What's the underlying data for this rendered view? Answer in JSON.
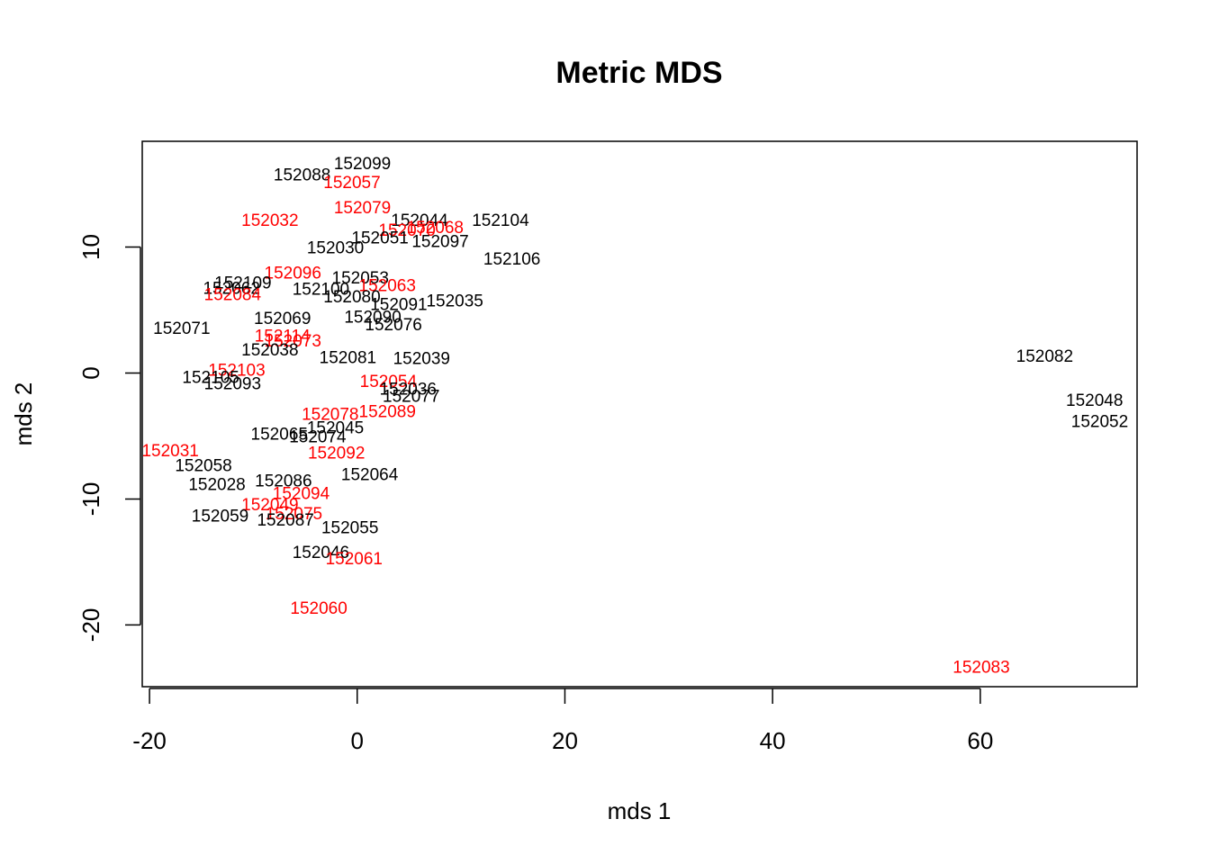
{
  "chart_data": {
    "type": "scatter",
    "title": "Metric MDS",
    "xlabel": "mds 1",
    "ylabel": "mds 2",
    "xlim": [
      -20.7,
      75.1
    ],
    "ylim": [
      -24.9,
      18.4
    ],
    "grid": false,
    "legend": "none",
    "colors": {
      "black": "#000000",
      "red": "#ff0000"
    },
    "xticks": [
      {
        "value": -20,
        "label": "-20"
      },
      {
        "value": 0,
        "label": "0"
      },
      {
        "value": 20,
        "label": "20"
      },
      {
        "value": 40,
        "label": "40"
      },
      {
        "value": 60,
        "label": "60"
      }
    ],
    "yticks": [
      {
        "value": -20,
        "label": "-20"
      },
      {
        "value": -10,
        "label": "-10"
      },
      {
        "value": 0,
        "label": "0"
      },
      {
        "value": 10,
        "label": "10"
      }
    ],
    "points": [
      {
        "label": "152099",
        "x": 0.5,
        "y": 16.7,
        "c": "black"
      },
      {
        "label": "152088",
        "x": -5.3,
        "y": 15.8,
        "c": "black"
      },
      {
        "label": "152057",
        "x": -0.5,
        "y": 15.2,
        "c": "red"
      },
      {
        "label": "152079",
        "x": 0.5,
        "y": 13.2,
        "c": "red"
      },
      {
        "label": "152032",
        "x": -8.4,
        "y": 12.2,
        "c": "red"
      },
      {
        "label": "152044",
        "x": 6.0,
        "y": 12.2,
        "c": "black"
      },
      {
        "label": "152104",
        "x": 13.8,
        "y": 12.2,
        "c": "black"
      },
      {
        "label": "152068",
        "x": 7.5,
        "y": 11.6,
        "c": "red"
      },
      {
        "label": "152070",
        "x": 4.8,
        "y": 11.4,
        "c": "red"
      },
      {
        "label": "152051",
        "x": 2.2,
        "y": 10.8,
        "c": "black"
      },
      {
        "label": "152097",
        "x": 8.0,
        "y": 10.5,
        "c": "black"
      },
      {
        "label": "152030",
        "x": -2.1,
        "y": 10.0,
        "c": "black"
      },
      {
        "label": "152106",
        "x": 14.9,
        "y": 9.1,
        "c": "black"
      },
      {
        "label": "152096",
        "x": -6.2,
        "y": 8.0,
        "c": "red"
      },
      {
        "label": "152053",
        "x": 0.3,
        "y": 7.6,
        "c": "black"
      },
      {
        "label": "152063",
        "x": 2.9,
        "y": 7.0,
        "c": "red"
      },
      {
        "label": "152109",
        "x": -11.0,
        "y": 7.2,
        "c": "black"
      },
      {
        "label": "152062",
        "x": -12.1,
        "y": 6.8,
        "c": "black"
      },
      {
        "label": "152084",
        "x": -12.0,
        "y": 6.3,
        "c": "red"
      },
      {
        "label": "152100",
        "x": -3.5,
        "y": 6.7,
        "c": "black"
      },
      {
        "label": "152080",
        "x": -0.5,
        "y": 6.1,
        "c": "black"
      },
      {
        "label": "152091",
        "x": 4.0,
        "y": 5.5,
        "c": "black"
      },
      {
        "label": "152035",
        "x": 9.4,
        "y": 5.8,
        "c": "black"
      },
      {
        "label": "152069",
        "x": -7.2,
        "y": 4.4,
        "c": "black"
      },
      {
        "label": "152090",
        "x": 1.5,
        "y": 4.5,
        "c": "black"
      },
      {
        "label": "152076",
        "x": 3.5,
        "y": 3.9,
        "c": "black"
      },
      {
        "label": "152071",
        "x": -16.9,
        "y": 3.6,
        "c": "black"
      },
      {
        "label": "152114",
        "x": -7.2,
        "y": 3.0,
        "c": "red"
      },
      {
        "label": "152073",
        "x": -6.2,
        "y": 2.6,
        "c": "red"
      },
      {
        "label": "152038",
        "x": -8.4,
        "y": 1.9,
        "c": "black"
      },
      {
        "label": "152081",
        "x": -0.9,
        "y": 1.3,
        "c": "black"
      },
      {
        "label": "152039",
        "x": 6.2,
        "y": 1.2,
        "c": "black"
      },
      {
        "label": "152082",
        "x": 66.2,
        "y": 1.4,
        "c": "black"
      },
      {
        "label": "152103",
        "x": -11.6,
        "y": 0.3,
        "c": "red"
      },
      {
        "label": "152105",
        "x": -14.1,
        "y": -0.3,
        "c": "black"
      },
      {
        "label": "152093",
        "x": -12.0,
        "y": -0.8,
        "c": "black"
      },
      {
        "label": "152054",
        "x": 3.0,
        "y": -0.6,
        "c": "red"
      },
      {
        "label": "152036",
        "x": 4.9,
        "y": -1.2,
        "c": "black"
      },
      {
        "label": "152077",
        "x": 5.2,
        "y": -1.8,
        "c": "black"
      },
      {
        "label": "152048",
        "x": 71.0,
        "y": -2.1,
        "c": "black"
      },
      {
        "label": "152089",
        "x": 2.9,
        "y": -3.0,
        "c": "red"
      },
      {
        "label": "152078",
        "x": -2.6,
        "y": -3.2,
        "c": "red"
      },
      {
        "label": "152052",
        "x": 71.5,
        "y": -3.8,
        "c": "black"
      },
      {
        "label": "152045",
        "x": -2.1,
        "y": -4.3,
        "c": "black"
      },
      {
        "label": "152065",
        "x": -7.5,
        "y": -4.8,
        "c": "black"
      },
      {
        "label": "152074",
        "x": -3.8,
        "y": -5.0,
        "c": "black"
      },
      {
        "label": "152031",
        "x": -18.0,
        "y": -6.1,
        "c": "red"
      },
      {
        "label": "152092",
        "x": -2.0,
        "y": -6.3,
        "c": "red"
      },
      {
        "label": "152058",
        "x": -14.8,
        "y": -7.3,
        "c": "black"
      },
      {
        "label": "152064",
        "x": 1.2,
        "y": -8.0,
        "c": "black"
      },
      {
        "label": "152028",
        "x": -13.5,
        "y": -8.8,
        "c": "black"
      },
      {
        "label": "152086",
        "x": -7.1,
        "y": -8.5,
        "c": "black"
      },
      {
        "label": "152094",
        "x": -5.4,
        "y": -9.5,
        "c": "red"
      },
      {
        "label": "152049",
        "x": -8.4,
        "y": -10.4,
        "c": "red"
      },
      {
        "label": "152075",
        "x": -6.1,
        "y": -11.1,
        "c": "red"
      },
      {
        "label": "152059",
        "x": -13.2,
        "y": -11.3,
        "c": "black"
      },
      {
        "label": "152087",
        "x": -6.9,
        "y": -11.6,
        "c": "black"
      },
      {
        "label": "152055",
        "x": -0.7,
        "y": -12.2,
        "c": "black"
      },
      {
        "label": "152046",
        "x": -3.5,
        "y": -14.2,
        "c": "black"
      },
      {
        "label": "152061",
        "x": -0.3,
        "y": -14.7,
        "c": "red"
      },
      {
        "label": "152060",
        "x": -3.7,
        "y": -18.6,
        "c": "red"
      },
      {
        "label": "152083",
        "x": 60.1,
        "y": -23.3,
        "c": "red"
      }
    ]
  }
}
